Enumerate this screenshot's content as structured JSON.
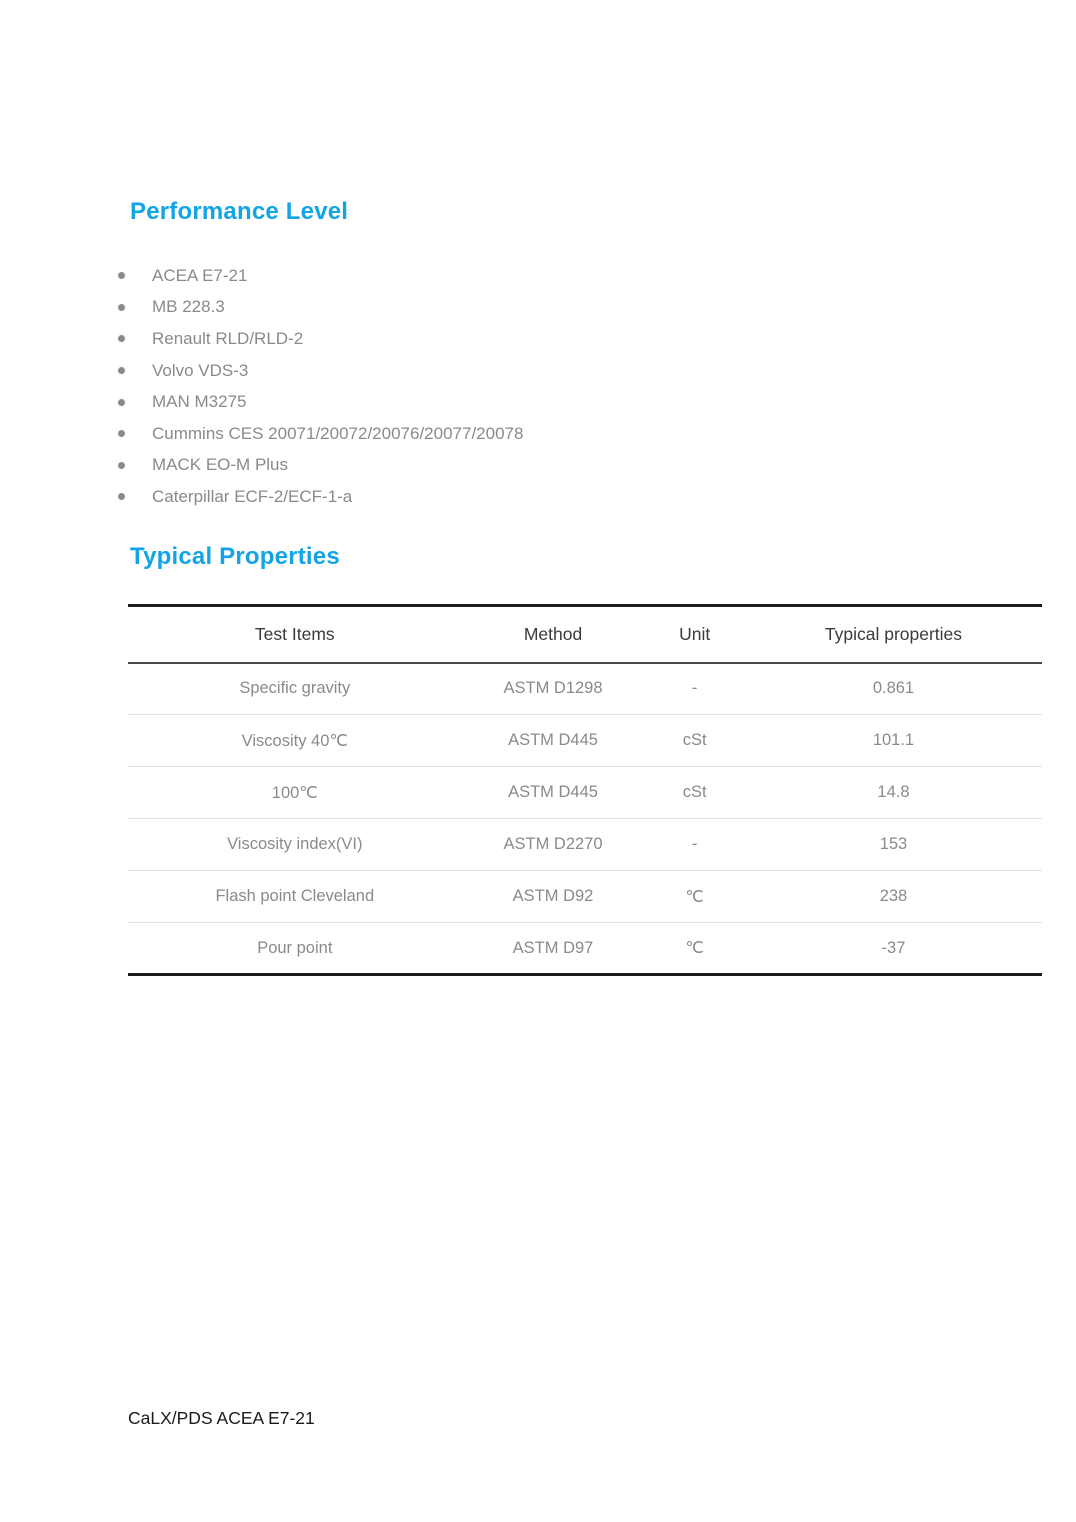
{
  "colors": {
    "accent": "#12a4e4"
  },
  "performance": {
    "title": "Performance Level",
    "items": [
      "ACEA E7-21",
      "MB 228.3",
      "Renault RLD/RLD-2",
      "Volvo VDS-3",
      "MAN M3275",
      "Cummins CES 20071/20072/20076/20077/20078",
      "MACK EO-M Plus",
      "Caterpillar ECF-2/ECF-1-a"
    ]
  },
  "properties": {
    "title": "Typical Properties",
    "table": {
      "headers": [
        "Test Items",
        "Method",
        "Unit",
        "Typical properties"
      ],
      "rows": [
        {
          "item": "Specific gravity",
          "method": "ASTM D1298",
          "unit": "-",
          "value": "0.861"
        },
        {
          "item": "Viscosity 40℃",
          "method": "ASTM D445",
          "unit": "cSt",
          "value": "101.1"
        },
        {
          "item": "100℃",
          "method": "ASTM D445",
          "unit": "cSt",
          "value": "14.8"
        },
        {
          "item": "Viscosity index(VI)",
          "method": "ASTM D2270",
          "unit": "-",
          "value": "153"
        },
        {
          "item": "Flash point Cleveland",
          "method": "ASTM D92",
          "unit": "℃",
          "value": "238"
        },
        {
          "item": "Pour point",
          "method": "ASTM D97",
          "unit": "℃",
          "value": "-37"
        }
      ]
    }
  },
  "footer": {
    "text": "CaLX/PDS ACEA E7-21"
  }
}
